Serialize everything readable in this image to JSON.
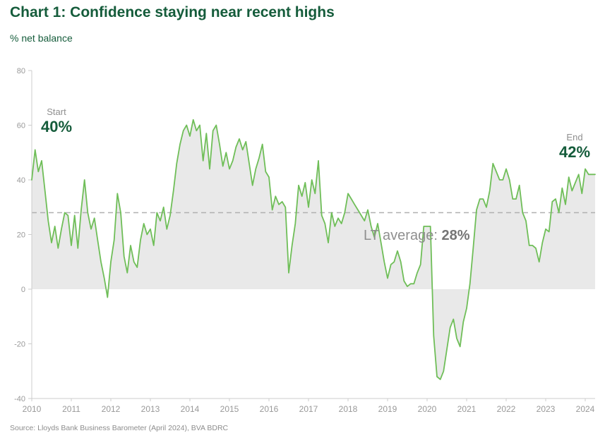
{
  "page": {
    "title": "Chart 1: Confidence staying near recent highs",
    "subtitle": "% net balance",
    "source": "Source: Lloyds Bank Business Barometer (April 2024), BVA BDRC"
  },
  "annotations": {
    "start_label": "Start",
    "start_value": "40%",
    "end_label": "End",
    "end_value": "42%",
    "lt_average_label": "LT average: ",
    "lt_average_value": "28%"
  },
  "colors": {
    "title_green": "#155c3b",
    "line_green": "#6fbe58",
    "area_fill": "#e9e9e9",
    "axis_gray": "#cccccc",
    "tick_text": "#999999",
    "dashed_line": "#b0b0b0",
    "annotation_gray": "#8f8f8f",
    "lt_value_gray": "#757575",
    "source_gray": "#8c8c8c"
  },
  "chart_data": {
    "type": "area",
    "title": "Chart 1: Confidence staying near recent highs",
    "ylabel": "% net balance",
    "ylim": [
      -40,
      80
    ],
    "yticks": [
      80,
      60,
      40,
      20,
      0,
      -20,
      -40
    ],
    "xticks": [
      2010,
      2011,
      2012,
      2013,
      2014,
      2015,
      2016,
      2017,
      2018,
      2019,
      2020,
      2021,
      2022,
      2023,
      2024
    ],
    "x_start": "2010-01",
    "x_end": "2024-04",
    "frequency": "monthly",
    "lt_average": 28,
    "start_value": 40,
    "end_value": 42,
    "grid": false,
    "legend": false,
    "values": [
      40,
      51,
      43,
      47,
      36,
      25,
      17,
      23,
      15,
      22,
      28,
      27,
      16,
      27,
      15,
      29,
      40,
      28,
      22,
      26,
      18,
      10,
      4,
      -3,
      10,
      18,
      35,
      28,
      12,
      6,
      16,
      10,
      8,
      18,
      24,
      20,
      22,
      16,
      28,
      25,
      30,
      22,
      27,
      36,
      46,
      53,
      58,
      60,
      56,
      62,
      58,
      60,
      47,
      57,
      44,
      58,
      60,
      53,
      45,
      50,
      44,
      47,
      52,
      55,
      51,
      54,
      46,
      38,
      44,
      48,
      53,
      43,
      41,
      29,
      34,
      31,
      32,
      30,
      6,
      16,
      24,
      38,
      34,
      39,
      30,
      40,
      35,
      47,
      27,
      24,
      17,
      28,
      23,
      26,
      24,
      28,
      35,
      33,
      31,
      29,
      27,
      25,
      29,
      23,
      19,
      24,
      17,
      10,
      4,
      9,
      10,
      14,
      10,
      3,
      1,
      2,
      2,
      6,
      9,
      23,
      23,
      23,
      -17,
      -32,
      -33,
      -30,
      -22,
      -14,
      -11,
      -18,
      -21,
      -12,
      -7,
      2,
      15,
      29,
      33,
      33,
      30,
      36,
      46,
      43,
      40,
      40,
      44,
      40,
      33,
      33,
      38,
      28,
      25,
      16,
      16,
      15,
      10,
      17,
      22,
      21,
      32,
      33,
      28,
      37,
      31,
      41,
      36,
      39,
      42,
      35,
      44,
      42,
      42,
      42
    ]
  }
}
